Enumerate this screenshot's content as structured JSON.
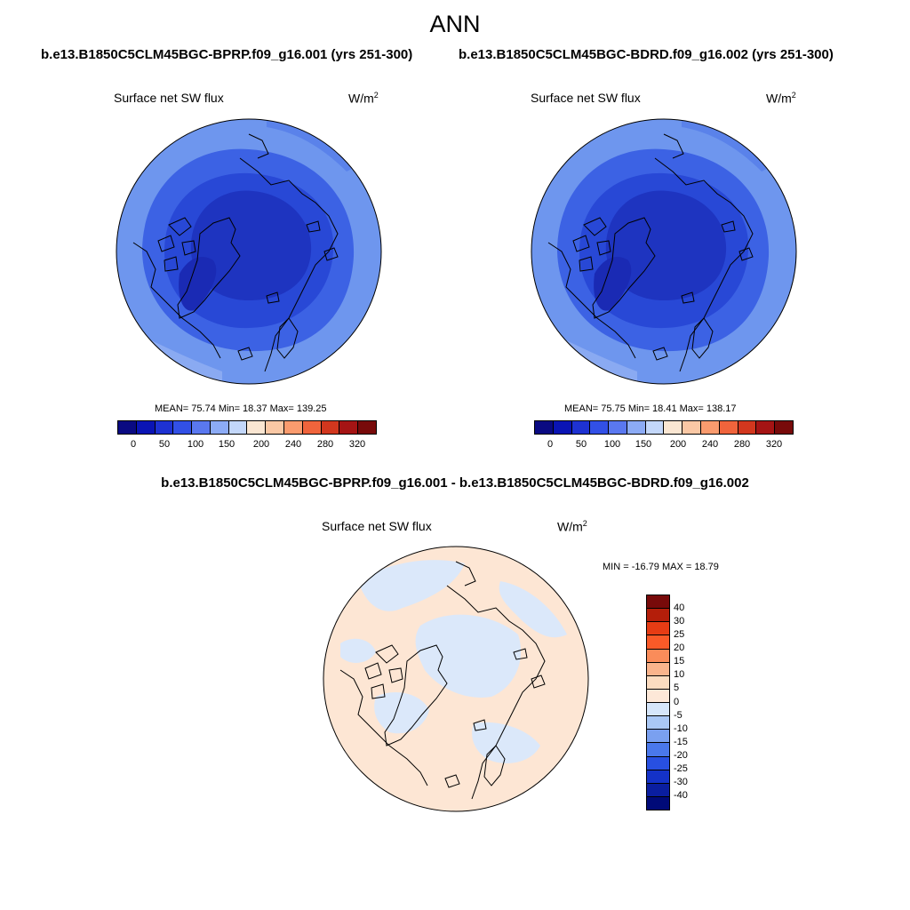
{
  "title": "ANN",
  "case1": "b.e13.B1850C5CLM45BGC-BPRP.f09_g16.001 (yrs 251-300)",
  "case2": "b.e13.B1850C5CLM45BGC-BDRD.f09_g16.002 (yrs 251-300)",
  "diff_title": "b.e13.B1850C5CLM45BGC-BPRP.f09_g16.001 - b.e13.B1850C5CLM45BGC-BDRD.f09_g16.002",
  "variable": "Surface net SW flux",
  "units_base": "W/m",
  "units_exp": "2",
  "panel1": {
    "mean": "MEAN=  75.74  Min=  18.37  Max= 139.25"
  },
  "panel2": {
    "mean": "MEAN=  75.75  Min=  18.41  Max= 138.17"
  },
  "diff_stats": "MIN = -16.79 MAX =  18.79",
  "colorbar": {
    "labels": [
      "0",
      "50",
      "100",
      "150",
      "200",
      "240",
      "280",
      "320"
    ],
    "colors": [
      "#0a0a82",
      "#0a14b4",
      "#1e32d2",
      "#3250e6",
      "#5a78f0",
      "#8cabf5",
      "#c3d7fa",
      "#fae6d2",
      "#fac8a5",
      "#fa9b6e",
      "#f0643c",
      "#d2371e",
      "#a51414",
      "#780a0a"
    ]
  },
  "diff_colorbar": {
    "labels": [
      "40",
      "30",
      "25",
      "20",
      "15",
      "10",
      "5",
      "0",
      "-5",
      "-10",
      "-15",
      "-20",
      "-25",
      "-30",
      "-40"
    ],
    "colors": [
      "#780a0a",
      "#b41e0a",
      "#e63c14",
      "#fa5a28",
      "#fa8c5a",
      "#fab48c",
      "#fcdcc0",
      "#fde8d8",
      "#d6e6fa",
      "#aac8f5",
      "#7aa0f0",
      "#4a78eb",
      "#2850e1",
      "#1432c8",
      "#0a1ea0",
      "#000a78"
    ]
  },
  "map_colors": {
    "ocean_outer": "#6e96ee",
    "mid": "#3c62e4",
    "inner": "#2848d6",
    "core": "#1e34c0",
    "ice": "#1a2ab4",
    "diff_pos": "#fde6d4",
    "diff_neg": "#dbe8fa"
  }
}
